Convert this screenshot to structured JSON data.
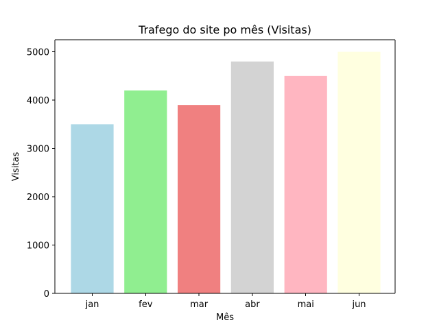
{
  "chart_data": {
    "type": "bar",
    "title": "Trafego do site po mês (Visitas)",
    "xlabel": "Mês",
    "ylabel": "Visitas",
    "categories": [
      "jan",
      "fev",
      "mar",
      "abr",
      "mai",
      "jun"
    ],
    "values": [
      3500,
      4200,
      3900,
      4800,
      4500,
      5000
    ],
    "colors": [
      "#add8e6",
      "#90ee90",
      "#f08080",
      "#d3d3d3",
      "#ffb6c1",
      "#ffffe0"
    ],
    "ylim": [
      0,
      5250
    ],
    "yticks": [
      0,
      1000,
      2000,
      3000,
      4000,
      5000
    ],
    "grid": false
  }
}
